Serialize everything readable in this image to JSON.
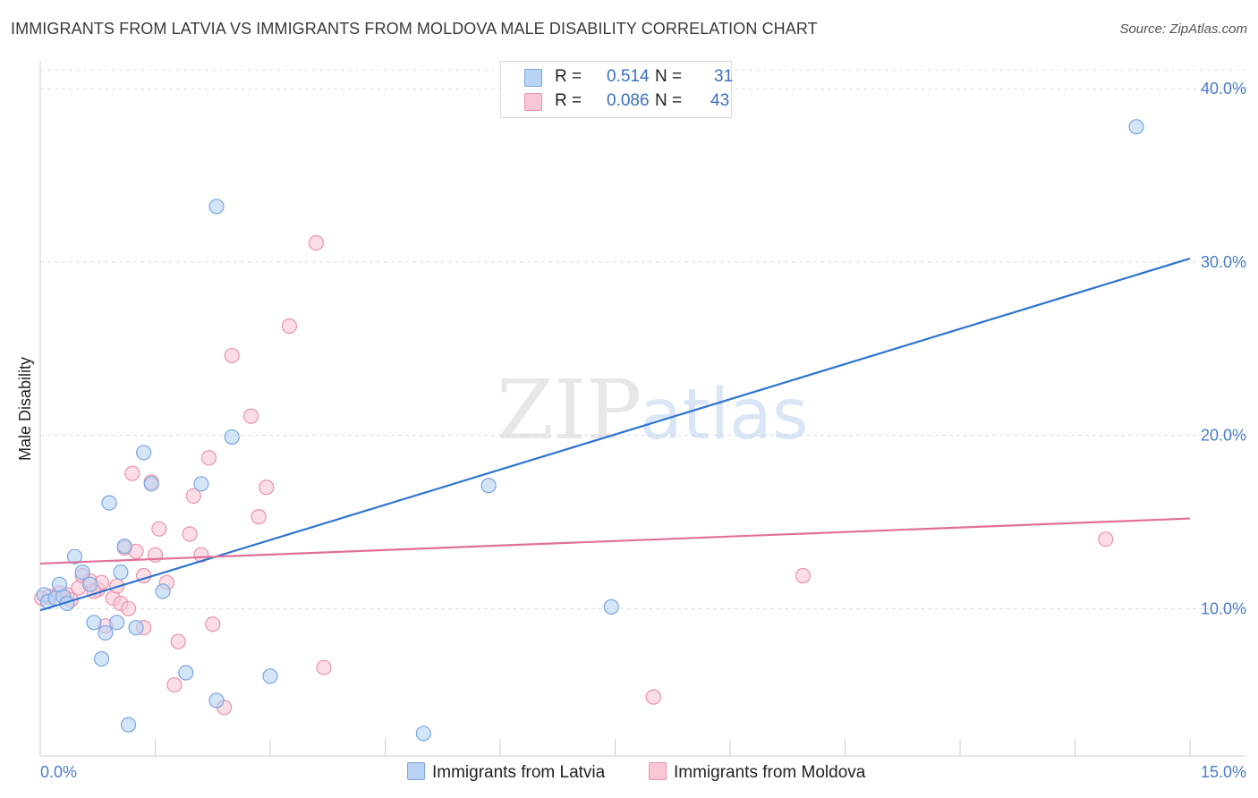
{
  "title": "IMMIGRANTS FROM LATVIA VS IMMIGRANTS FROM MOLDOVA MALE DISABILITY CORRELATION CHART",
  "source": "Source: ZipAtlas.com",
  "watermark": {
    "zip": "ZIP",
    "atlas": "atlas"
  },
  "legend": {
    "r_label": "R =",
    "n_label": "N =",
    "latvia": {
      "r": "0.514",
      "n": "31"
    },
    "moldova": {
      "r": "0.086",
      "n": "43"
    }
  },
  "colors": {
    "latvia_fill": "#b8d3f3",
    "latvia_stroke": "#7aa7e0",
    "latvia_line": "#2e73d0",
    "moldova_fill": "#f9c6d4",
    "moldova_stroke": "#ec93ae",
    "moldova_line": "#e0709a"
  },
  "chart_data": {
    "type": "scatter",
    "title": "IMMIGRANTS FROM LATVIA VS IMMIGRANTS FROM MOLDOVA MALE DISABILITY CORRELATION CHART",
    "ylabel": "Male Disability",
    "xlim": [
      0,
      15
    ],
    "ylim": [
      1.5,
      41.5
    ],
    "x_ticks": [
      "0.0%",
      "15.0%"
    ],
    "y_ticks": [
      {
        "value": 10,
        "label": "10.0%"
      },
      {
        "value": 20,
        "label": "20.0%"
      },
      {
        "value": 30,
        "label": "30.0%"
      },
      {
        "value": 40,
        "label": "40.0%"
      }
    ],
    "grid": true,
    "legend_placement": "bottom",
    "series": [
      {
        "name": "Immigrants from Latvia",
        "points": [
          [
            0.05,
            10.8
          ],
          [
            0.1,
            10.4
          ],
          [
            0.2,
            10.6
          ],
          [
            0.3,
            10.7
          ],
          [
            0.35,
            10.3
          ],
          [
            0.45,
            13.0
          ],
          [
            0.55,
            12.1
          ],
          [
            0.65,
            11.4
          ],
          [
            0.7,
            9.2
          ],
          [
            0.8,
            7.1
          ],
          [
            0.85,
            8.6
          ],
          [
            0.9,
            16.1
          ],
          [
            1.0,
            9.2
          ],
          [
            1.05,
            12.1
          ],
          [
            1.1,
            13.6
          ],
          [
            1.15,
            3.3
          ],
          [
            1.25,
            8.9
          ],
          [
            1.35,
            19.0
          ],
          [
            1.45,
            17.2
          ],
          [
            1.6,
            11.0
          ],
          [
            1.9,
            6.3
          ],
          [
            2.1,
            17.2
          ],
          [
            2.3,
            4.7
          ],
          [
            2.3,
            33.2
          ],
          [
            2.5,
            19.9
          ],
          [
            3.0,
            6.1
          ],
          [
            5.0,
            2.8
          ],
          [
            5.85,
            17.1
          ],
          [
            7.45,
            10.1
          ],
          [
            14.3,
            37.8
          ],
          [
            0.25,
            11.4
          ]
        ]
      },
      {
        "name": "Immigrants from Moldova",
        "points": [
          [
            0.02,
            10.6
          ],
          [
            0.12,
            10.7
          ],
          [
            0.25,
            10.9
          ],
          [
            0.35,
            10.8
          ],
          [
            0.5,
            11.2
          ],
          [
            0.55,
            11.9
          ],
          [
            0.65,
            11.6
          ],
          [
            0.75,
            11.1
          ],
          [
            0.8,
            11.5
          ],
          [
            0.85,
            9.0
          ],
          [
            0.95,
            10.6
          ],
          [
            1.0,
            11.3
          ],
          [
            1.05,
            10.3
          ],
          [
            1.1,
            13.5
          ],
          [
            1.2,
            17.8
          ],
          [
            1.25,
            13.3
          ],
          [
            1.35,
            11.9
          ],
          [
            1.35,
            8.9
          ],
          [
            1.45,
            17.3
          ],
          [
            1.5,
            13.1
          ],
          [
            1.55,
            14.6
          ],
          [
            1.65,
            11.5
          ],
          [
            1.75,
            5.6
          ],
          [
            1.8,
            8.1
          ],
          [
            1.95,
            14.3
          ],
          [
            2.0,
            16.5
          ],
          [
            2.1,
            13.1
          ],
          [
            2.2,
            18.7
          ],
          [
            2.25,
            9.1
          ],
          [
            2.4,
            4.3
          ],
          [
            2.5,
            24.6
          ],
          [
            2.75,
            21.1
          ],
          [
            2.85,
            15.3
          ],
          [
            2.95,
            17.0
          ],
          [
            3.25,
            26.3
          ],
          [
            3.6,
            31.1
          ],
          [
            3.7,
            6.6
          ],
          [
            8.0,
            4.9
          ],
          [
            9.95,
            11.9
          ],
          [
            13.9,
            14.0
          ],
          [
            0.4,
            10.5
          ],
          [
            0.7,
            11.0
          ],
          [
            1.15,
            10.0
          ]
        ]
      }
    ],
    "trendlines": [
      {
        "series": "Immigrants from Latvia",
        "x": [
          0,
          15
        ],
        "y": [
          9.9,
          30.2
        ]
      },
      {
        "series": "Immigrants from Moldova",
        "x": [
          0,
          15
        ],
        "y": [
          12.6,
          15.2
        ]
      }
    ]
  }
}
